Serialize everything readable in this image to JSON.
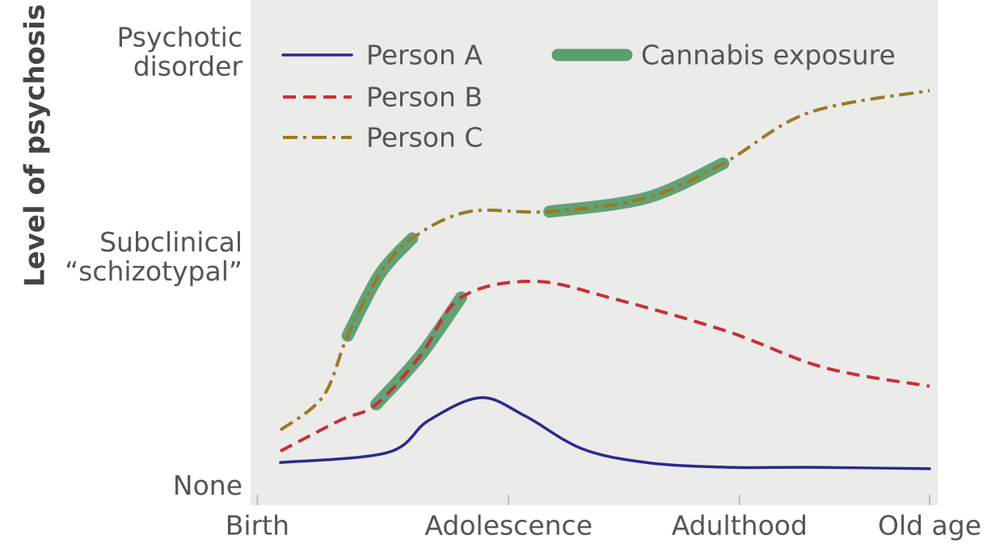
{
  "chart_data": {
    "type": "line",
    "ylabel": "Level of psychosis",
    "xlim": [
      0,
      100
    ],
    "ylim": [
      0,
      100
    ],
    "xticks": [
      {
        "value": 1,
        "label": "Birth"
      },
      {
        "value": 38,
        "label": "Adolescence"
      },
      {
        "value": 72,
        "label": "Adulthood"
      },
      {
        "value": 100,
        "label": "Old age"
      }
    ],
    "yticks": [
      {
        "value": 3,
        "label": "None"
      },
      {
        "value": 51,
        "label": "Subclinical “schizotypal”"
      },
      {
        "value": 94,
        "label": "Psychotic disorder"
      }
    ],
    "series": [
      {
        "name": "Cannabis exposure",
        "color": "#5a9e6f",
        "dash": "highlight",
        "x": [
          14.3,
          19,
          23.8,
          null,
          18.5,
          25,
          31,
          null,
          44,
          58.3,
          69.6
        ],
        "values": [
          34.7,
          47.5,
          55.1,
          null,
          20.3,
          30.5,
          42.7,
          null,
          60.7,
          63.6,
          70.8
        ]
      },
      {
        "name": "Person A",
        "color": "#2b2a8c",
        "dash": "solid",
        "x": [
          4.4,
          20.2,
          26.2,
          33.9,
          40.5,
          48.8,
          58.3,
          70.2,
          82.1,
          100
        ],
        "values": [
          8.1,
          10.2,
          16.9,
          21.7,
          17.8,
          11.0,
          8.1,
          7.1,
          7.1,
          6.8
        ]
      },
      {
        "name": "Person B",
        "color": "#c8303a",
        "dash": "dashed",
        "x": [
          4.4,
          13.1,
          18.5,
          25,
          31,
          41.7,
          53.6,
          70.2,
          84.5,
          100
        ],
        "values": [
          10.5,
          16.9,
          20.3,
          30.5,
          42.7,
          46.1,
          42.4,
          35.6,
          28,
          24.1
        ]
      },
      {
        "name": "Person C",
        "color": "#9a7a24",
        "dash": "dashdot",
        "x": [
          4.4,
          10.7,
          14.3,
          19,
          23.8,
          32.1,
          44,
          58.3,
          69.6,
          82.1,
          100
        ],
        "values": [
          14.9,
          22,
          34.7,
          47.5,
          55.1,
          60.7,
          60.7,
          63.6,
          70.8,
          81.4,
          86.1
        ]
      }
    ]
  }
}
